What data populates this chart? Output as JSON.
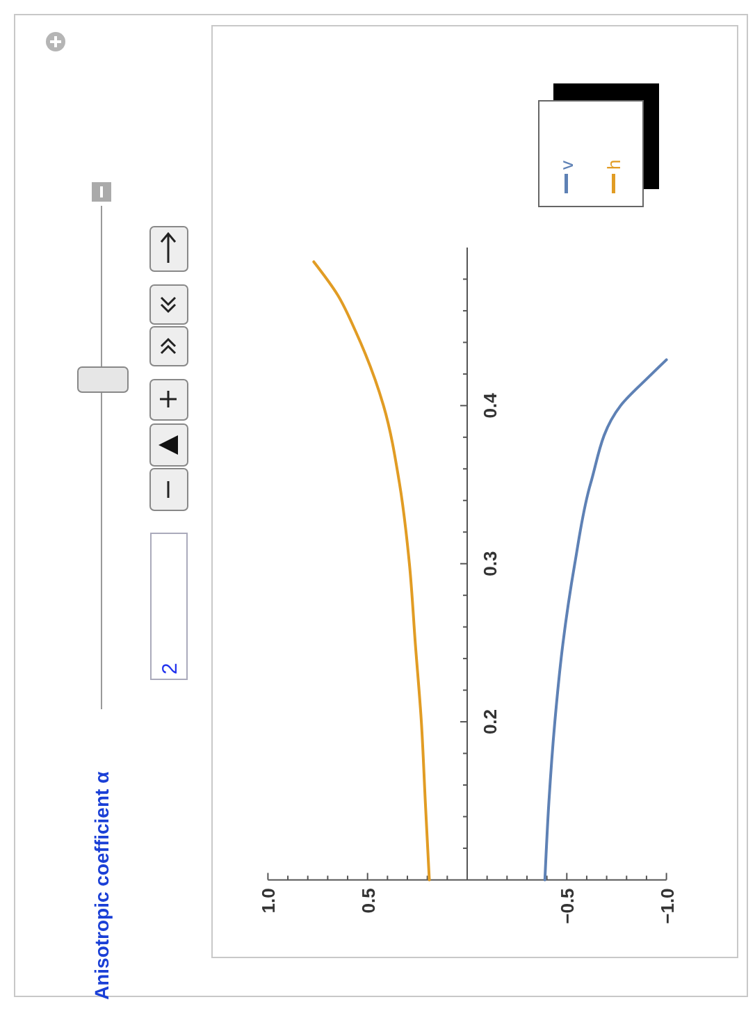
{
  "chart_data": {
    "type": "line",
    "xlim": [
      1.0,
      -1.0
    ],
    "ylim": [
      0.1,
      0.5
    ],
    "xticks": [
      {
        "value": -1.0,
        "label": "−1.0"
      },
      {
        "value": -0.9,
        "label": null
      },
      {
        "value": -0.8,
        "label": null
      },
      {
        "value": -0.7,
        "label": null
      },
      {
        "value": -0.6,
        "label": null
      },
      {
        "value": -0.5,
        "label": "−0.5"
      },
      {
        "value": -0.4,
        "label": null
      },
      {
        "value": -0.3,
        "label": null
      },
      {
        "value": -0.2,
        "label": null
      },
      {
        "value": -0.1,
        "label": null
      },
      {
        "value": 0.1,
        "label": null
      },
      {
        "value": 0.2,
        "label": null
      },
      {
        "value": 0.3,
        "label": null
      },
      {
        "value": 0.4,
        "label": null
      },
      {
        "value": 0.5,
        "label": "0.5"
      },
      {
        "value": 0.6,
        "label": null
      },
      {
        "value": 0.7,
        "label": null
      },
      {
        "value": 0.8,
        "label": null
      },
      {
        "value": 0.9,
        "label": null
      },
      {
        "value": 1.0,
        "label": "1.0"
      }
    ],
    "yticks": [
      {
        "value": 0.12,
        "label": null
      },
      {
        "value": 0.14,
        "label": null
      },
      {
        "value": 0.16,
        "label": null
      },
      {
        "value": 0.18,
        "label": null
      },
      0.2,
      {
        "value": 0.22,
        "label": null
      },
      {
        "value": 0.24,
        "label": null
      },
      {
        "value": 0.26,
        "label": null
      },
      {
        "value": 0.28,
        "label": null
      },
      0.3,
      {
        "value": 0.32,
        "label": null
      },
      {
        "value": 0.34,
        "label": null
      },
      {
        "value": 0.36,
        "label": null
      },
      {
        "value": 0.38,
        "label": null
      },
      0.4,
      {
        "value": 0.42,
        "label": null
      },
      {
        "value": 0.44,
        "label": null
      },
      {
        "value": 0.46,
        "label": null
      },
      {
        "value": 0.48,
        "label": null
      }
    ],
    "legend": "top right",
    "annotations": [
      "Anisotropic coefficient α",
      "2"
    ],
    "series": [
      {
        "name": "v",
        "color": "#5e81b5",
        "x": [
          -0.39,
          -0.41,
          -0.44,
          -0.48,
          -0.54,
          -0.62,
          -0.77,
          -0.91,
          -1.0
        ],
        "values": [
          0.1,
          0.149,
          0.2,
          0.249,
          0.3,
          0.351,
          0.4,
          0.418,
          0.429
        ]
      },
      {
        "name": "h",
        "color": "#e19c24",
        "x": [
          0.19,
          0.21,
          0.23,
          0.26,
          0.29,
          0.34,
          0.42,
          0.56,
          0.65,
          0.77
        ],
        "values": [
          0.1,
          0.149,
          0.2,
          0.249,
          0.3,
          0.351,
          0.4,
          0.447,
          0.47,
          0.491
        ]
      }
    ]
  }
}
